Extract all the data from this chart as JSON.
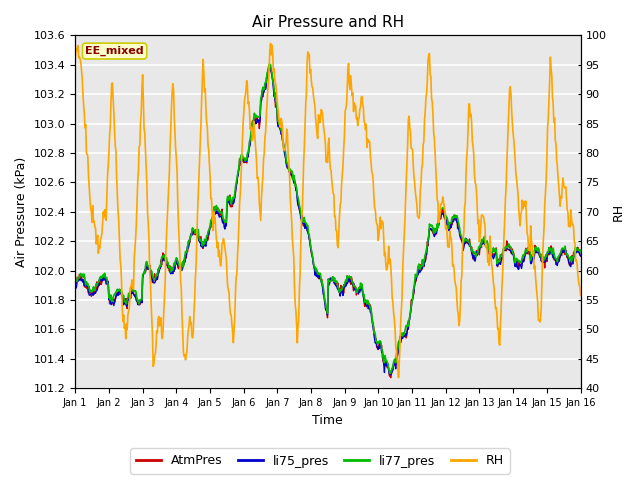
{
  "title": "Air Pressure and RH",
  "xlabel": "Time",
  "ylabel_left": "Air Pressure (kPa)",
  "ylabel_right": "RH",
  "ylim_left": [
    101.2,
    103.6
  ],
  "ylim_right": [
    40,
    100
  ],
  "yticks_left": [
    101.2,
    101.4,
    101.6,
    101.8,
    102.0,
    102.2,
    102.4,
    102.6,
    102.8,
    103.0,
    103.2,
    103.4,
    103.6
  ],
  "yticks_right": [
    40,
    45,
    50,
    55,
    60,
    65,
    70,
    75,
    80,
    85,
    90,
    95,
    100
  ],
  "xtick_labels": [
    "Jan 1",
    "Jan 2",
    "Jan 3",
    "Jan 4",
    "Jan 5",
    "Jan 6",
    "Jan 7",
    "Jan 8",
    "Jan 9",
    "Jan 10",
    "Jan 11",
    "Jan 12",
    "Jan 13",
    "Jan 14",
    "Jan 15",
    "Jan 16"
  ],
  "n_days": 15,
  "pts_per_day": 48,
  "annotation_text": "EE_mixed",
  "annotation_bg": "#ffffcc",
  "annotation_border": "#cccc00",
  "line_colors": {
    "AtmPres": "#cc0000",
    "li75_pres": "#0000cc",
    "li77_pres": "#00bb00",
    "RH": "#ffa500"
  },
  "line_widths": {
    "AtmPres": 1.0,
    "li75_pres": 1.0,
    "li77_pres": 1.2,
    "RH": 1.2
  },
  "fig_bg": "#ffffff",
  "plot_bg": "#e8e8e8",
  "grid_color": "#ffffff",
  "legend_colors": {
    "AtmPres": "#cc0000",
    "li75_pres": "#0000cc",
    "li77_pres": "#00bb00",
    "RH": "#ffa500"
  }
}
